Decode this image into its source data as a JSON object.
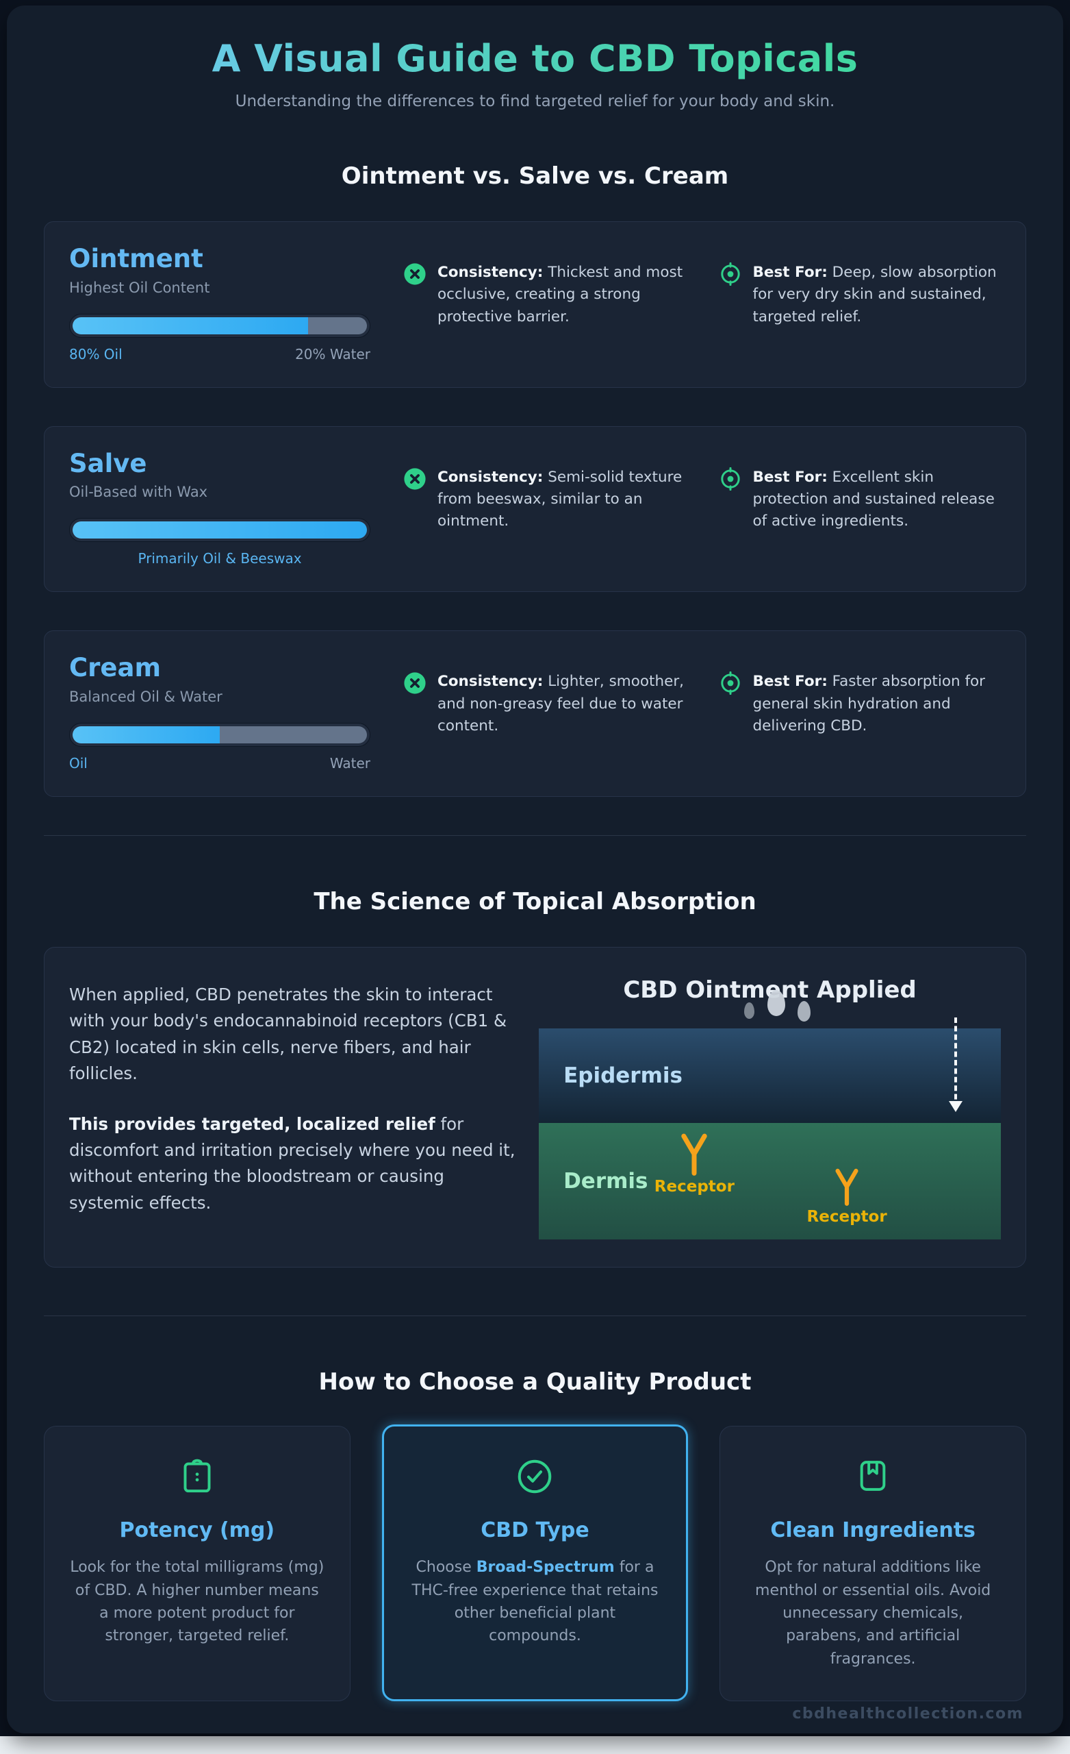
{
  "colors": {
    "accent_blue": "#64b9f3",
    "accent_green": "#2fd08a",
    "bar_fill_blue": "#38bdf8",
    "bar_track_gray": "#64748b",
    "receptor_orange": "#f5a21b",
    "highlight_border": "#41b2f0",
    "title_gradient_start": "#6ec9f0",
    "title_gradient_end": "#3fdb9b"
  },
  "header": {
    "title": "A Visual Guide to CBD Topicals",
    "subtitle": "Understanding the differences to find targeted relief for your body and skin."
  },
  "comparison": {
    "heading": "Ointment vs. Salve vs. Cream",
    "consistency_label": "Consistency:",
    "bestfor_label": "Best For:",
    "products": [
      {
        "name": "Ointment",
        "subtitle": "Highest Oil Content",
        "fill_percent": 80,
        "left_label": "80% Oil",
        "right_label": "20% Water",
        "consistency": "Thickest and most occlusive, creating a strong protective barrier.",
        "bestfor": "Deep, slow absorption for very dry skin and sustained, targeted relief."
      },
      {
        "name": "Salve",
        "subtitle": "Oil-Based with Wax",
        "fill_percent": 100,
        "center_label": "Primarily Oil & Beeswax",
        "consistency": "Semi-solid texture from beeswax, similar to an ointment.",
        "bestfor": "Excellent skin protection and sustained release of active ingredients."
      },
      {
        "name": "Cream",
        "subtitle": "Balanced Oil & Water",
        "fill_percent": 50,
        "left_label": "Oil",
        "right_label": "Water",
        "consistency": "Lighter, smoother, and non-greasy feel due to water content.",
        "bestfor": "Faster absorption for general skin hydration and delivering CBD."
      }
    ]
  },
  "science": {
    "heading": "The Science of Topical Absorption",
    "para1": "When applied, CBD penetrates the skin to interact with your body's endocannabinoid receptors (CB1 & CB2) located in skin cells, nerve fibers, and hair follicles.",
    "para2_lead": "This provides targeted, localized relief",
    "para2_rest": " for discomfort and irritation precisely where you need it, without entering the bloodstream or causing systemic effects.",
    "diagram": {
      "title": "CBD Ointment Applied",
      "layer1_label": "Epidermis",
      "layer2_label": "Dermis",
      "receptor_label": "Receptor"
    }
  },
  "quality": {
    "heading": "How to Choose a Quality Product",
    "cards": [
      {
        "title": "Potency (mg)",
        "body": "Look for the total milligrams (mg) of CBD. A higher number means a more potent product for stronger, targeted relief.",
        "icon": "clipboard-icon"
      },
      {
        "title": "CBD Type",
        "body_pre": "Choose ",
        "body_highlight": "Broad-Spectrum",
        "body_post": " for a THC-free experience that retains other beneficial plant compounds.",
        "icon": "check-circle-icon"
      },
      {
        "title": "Clean Ingredients",
        "body": "Opt for natural additions like menthol or essential oils. Avoid unnecessary chemicals, parabens, and artificial fragrances.",
        "icon": "bookmark-icon"
      }
    ]
  },
  "footer": {
    "watermark": "cbdhealthcollection.com"
  }
}
